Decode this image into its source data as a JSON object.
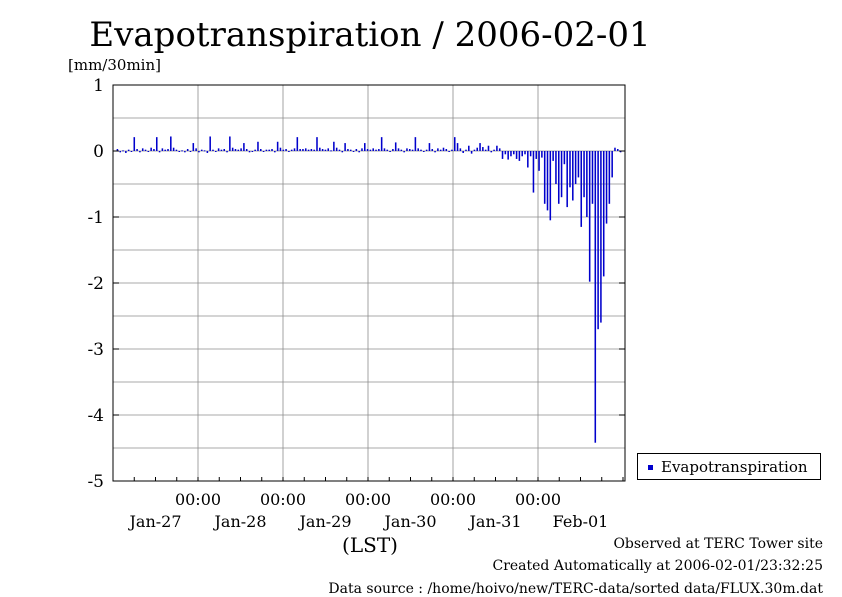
{
  "chart_data": {
    "type": "bar",
    "title": "Evapotranspiration / 2006-02-01",
    "ylabel": "[mm/30min]",
    "xlabel": "(LST)",
    "ylim": [
      -5,
      1
    ],
    "yticks": [
      "1",
      "0",
      "-1",
      "-2",
      "-3",
      "-4",
      "-5"
    ],
    "grid": true,
    "xtick_time_labels": [
      "00:00",
      "00:00",
      "00:00",
      "00:00",
      "00:00"
    ],
    "xtick_date_labels": [
      "Jan-27",
      "Jan-28",
      "Jan-29",
      "Jan-30",
      "Jan-31",
      "Feb-01"
    ],
    "series": [
      {
        "name": "Evapotranspiration",
        "color": "#0000cc",
        "values": [
          0.03,
          -0.02,
          0.01,
          -0.03,
          0.02,
          -0.01,
          0.21,
          0.03,
          -0.02,
          0.04,
          0.02,
          -0.01,
          0.05,
          0.03,
          0.21,
          -0.02,
          0.04,
          0.02,
          0.03,
          0.22,
          0.05,
          0.02,
          -0.01,
          0.01,
          -0.02,
          0.03,
          -0.01,
          0.12,
          0.04,
          -0.02,
          0.02,
          0.01,
          -0.03,
          0.22,
          0.02,
          -0.01,
          0.04,
          0.02,
          0.03,
          -0.02,
          0.22,
          0.05,
          0.03,
          0.02,
          0.04,
          0.12,
          0.03,
          -0.02,
          -0.01,
          0.02,
          0.14,
          0.03,
          -0.01,
          0.02,
          0.02,
          0.03,
          -0.02,
          0.14,
          0.05,
          0.02,
          0.03,
          -0.01,
          0.02,
          0.04,
          0.21,
          0.03,
          0.03,
          0.04,
          0.02,
          0.03,
          0.02,
          0.21,
          0.05,
          0.03,
          0.02,
          0.04,
          0.01,
          0.14,
          0.05,
          0.02,
          -0.02,
          0.12,
          0.03,
          0.02,
          -0.01,
          0.03,
          -0.02,
          0.04,
          0.12,
          0.03,
          0.02,
          0.04,
          0.02,
          0.03,
          0.21,
          0.04,
          0.02,
          -0.01,
          0.03,
          0.13,
          0.04,
          0.02,
          -0.02,
          0.04,
          0.03,
          0.02,
          0.21,
          0.04,
          0.02,
          -0.01,
          0.02,
          0.12,
          0.03,
          -0.02,
          0.04,
          0.02,
          0.05,
          0.03,
          -0.01,
          0.02,
          0.21,
          0.12,
          0.04,
          -0.03,
          0.02,
          0.08,
          -0.04,
          0.02,
          0.05,
          0.12,
          0.06,
          0.02,
          0.08,
          -0.02,
          0.02,
          0.08,
          0.04,
          -0.12,
          -0.05,
          -0.13,
          -0.08,
          -0.05,
          -0.12,
          -0.15,
          -0.08,
          -0.05,
          -0.25,
          -0.08,
          -0.63,
          -0.12,
          -0.3,
          -0.1,
          -0.8,
          -0.9,
          -1.05,
          -0.15,
          -0.5,
          -0.8,
          -0.7,
          -0.2,
          -0.85,
          -0.55,
          -0.75,
          -0.5,
          -0.4,
          -1.15,
          -0.7,
          -1.0,
          -1.98,
          -0.8,
          -4.42,
          -2.7,
          -2.6,
          -1.9,
          -1.1,
          -0.8,
          -0.4,
          0.05,
          0.03,
          -0.02
        ]
      }
    ]
  },
  "footer": {
    "line1": "Observed at TERC Tower site",
    "line2": "Created Automatically at 2006-02-01/23:32:25",
    "line3": "Data source : /home/hoivo/new/TERC-data/sorted  data/FLUX.30m.dat"
  }
}
